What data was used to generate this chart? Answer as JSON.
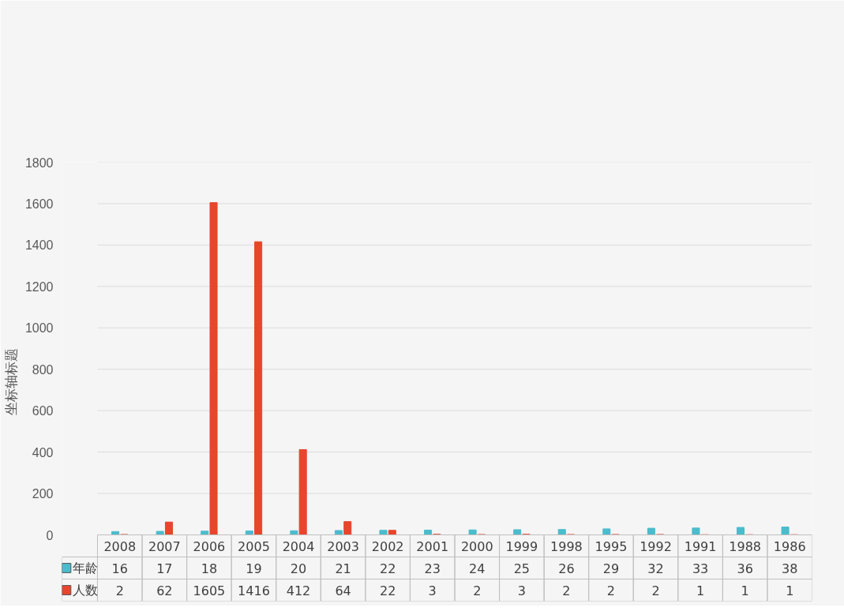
{
  "chart_data": {
    "type": "bar",
    "ylabel": "坐标轴标题",
    "categories": [
      "2008",
      "2007",
      "2006",
      "2005",
      "2004",
      "2003",
      "2002",
      "2001",
      "2000",
      "1999",
      "1998",
      "1995",
      "1992",
      "1991",
      "1988",
      "1986"
    ],
    "series": [
      {
        "name": "年龄",
        "color": "#4bbccc",
        "values": [
          16,
          17,
          18,
          19,
          20,
          21,
          22,
          23,
          24,
          25,
          26,
          29,
          32,
          33,
          36,
          38
        ]
      },
      {
        "name": "人数",
        "color": "#e8452c",
        "values": [
          2,
          62,
          1605,
          1416,
          412,
          64,
          22,
          3,
          2,
          3,
          2,
          2,
          2,
          1,
          1,
          1
        ]
      }
    ],
    "ylim": [
      0,
      1800
    ],
    "yticks": [
      0,
      200,
      400,
      600,
      800,
      1000,
      1200,
      1400,
      1600,
      1800
    ],
    "grid": "y",
    "legend": "bottom",
    "data_labels": true
  }
}
